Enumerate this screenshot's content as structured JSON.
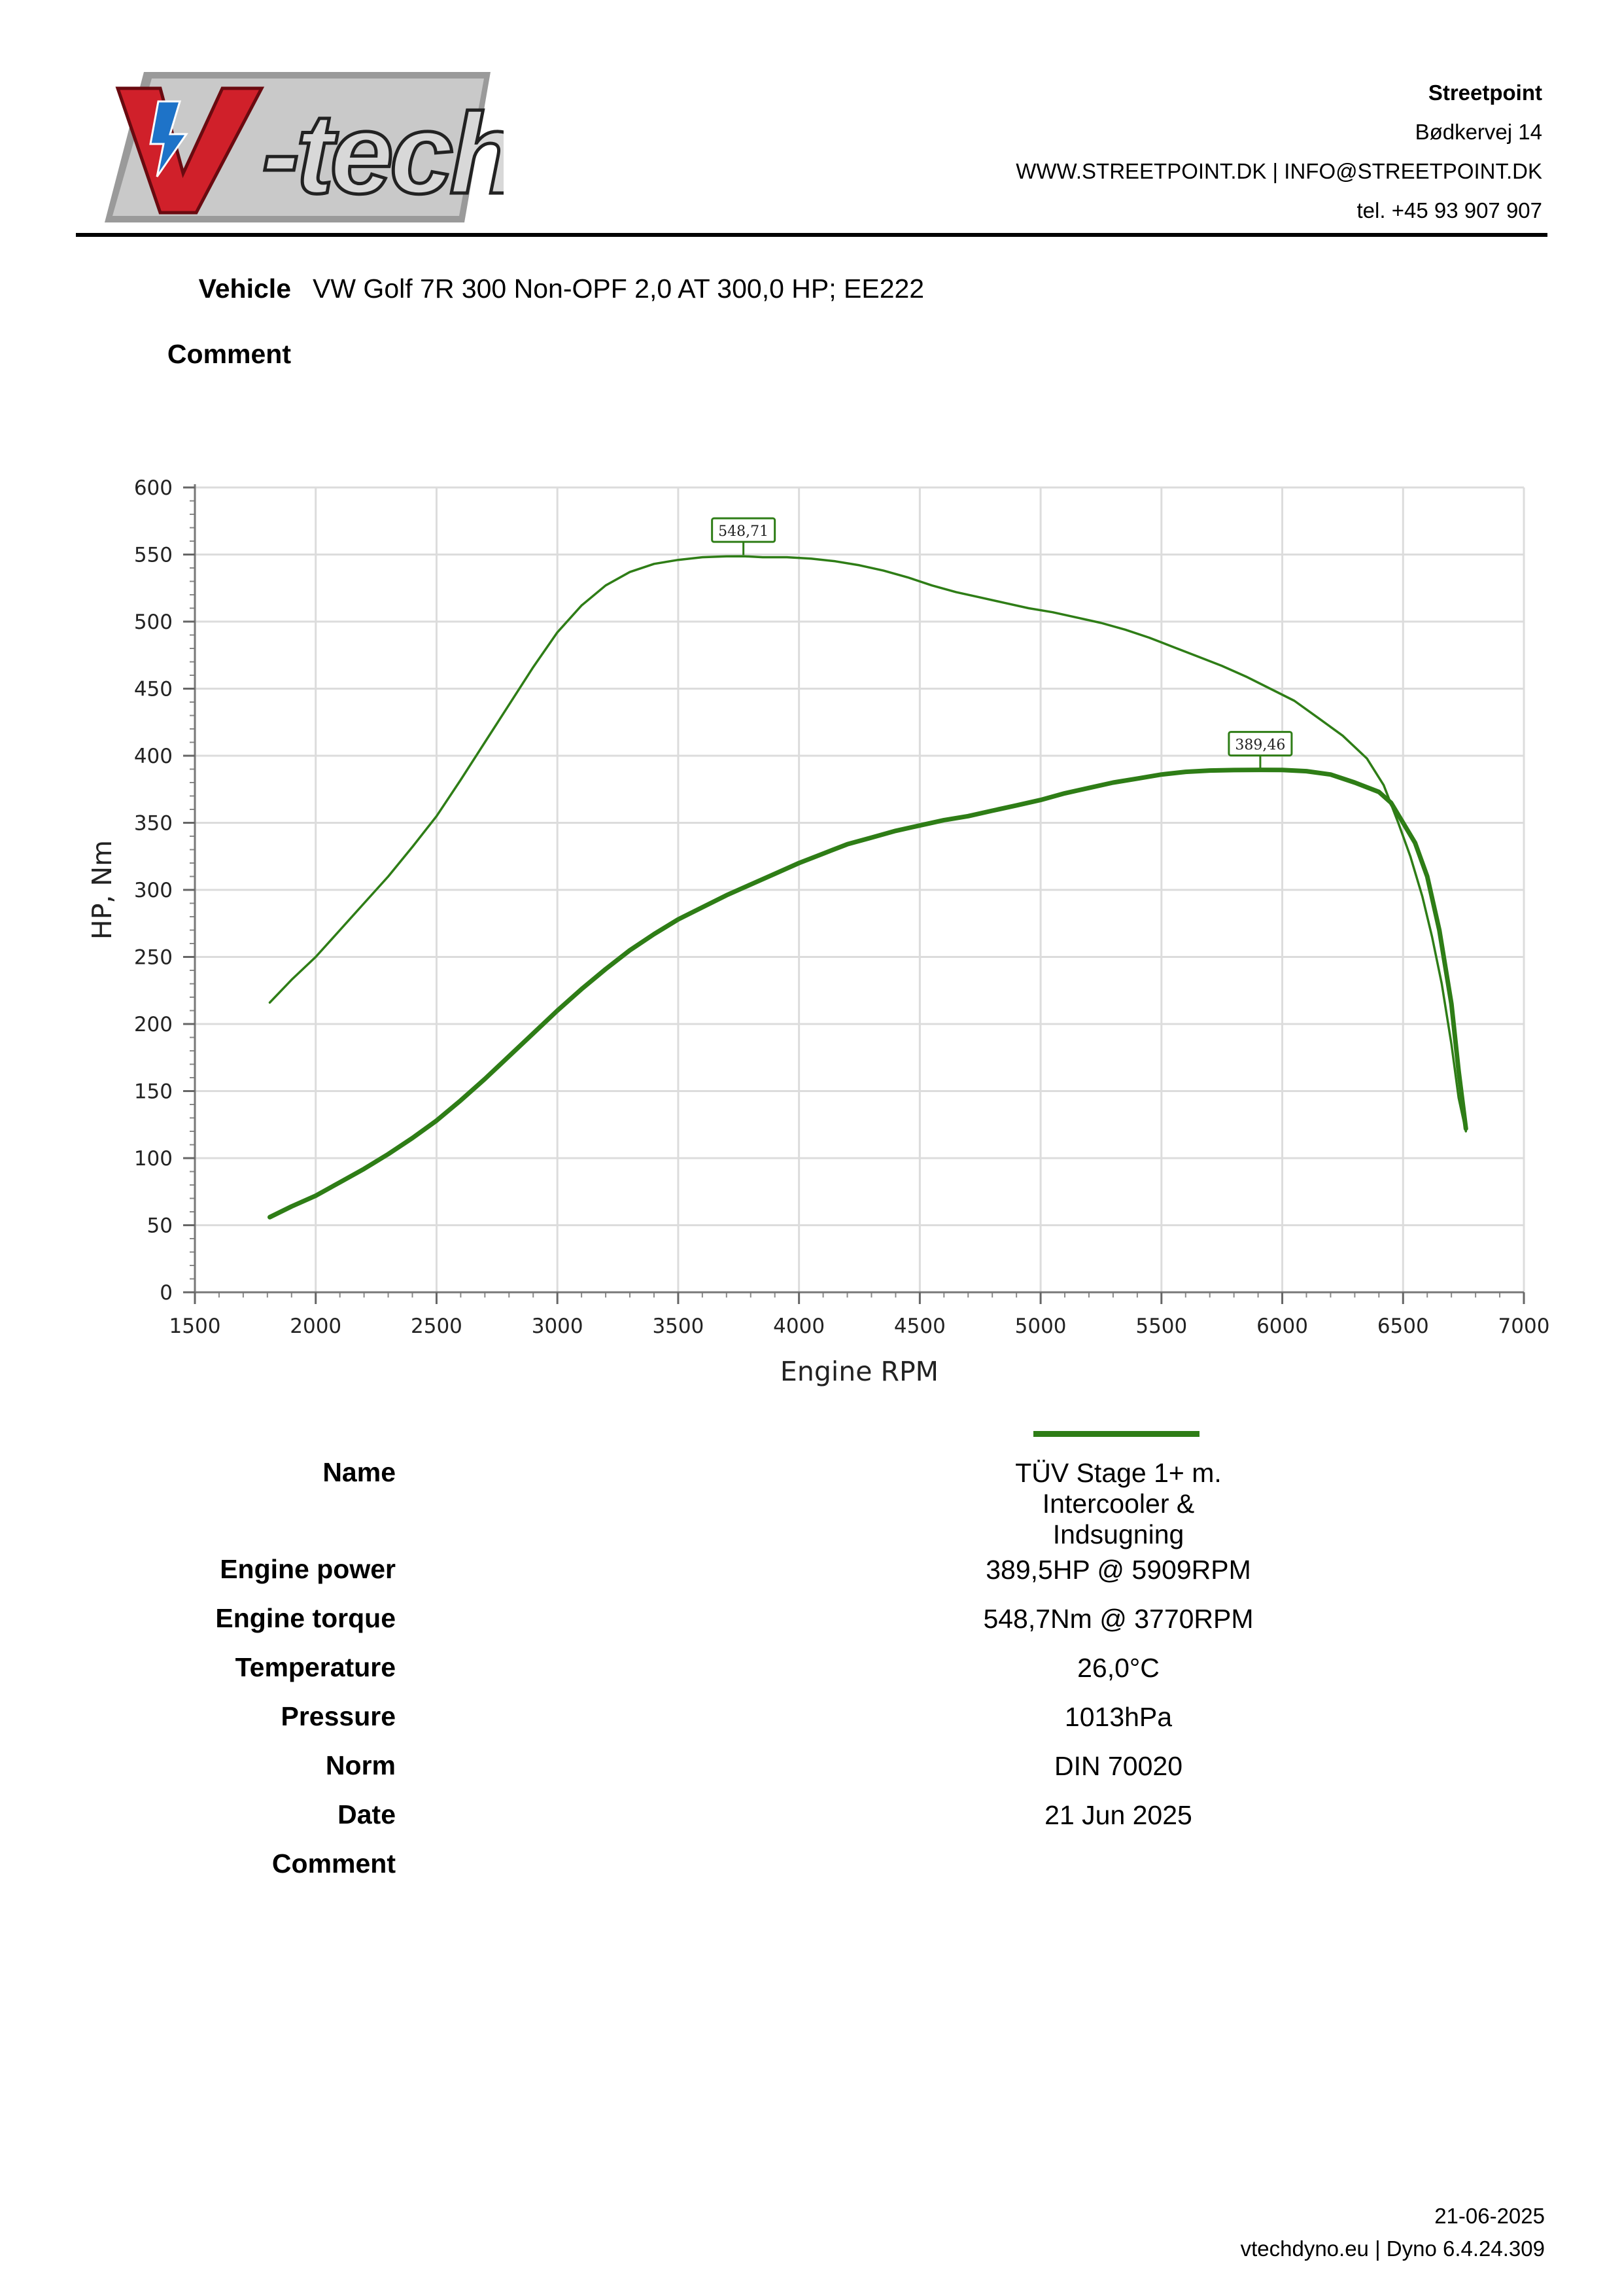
{
  "header": {
    "company_name": "Streetpoint",
    "address": "Bødkervej 14",
    "web_email": "WWW.STREETPOINT.DK | INFO@STREETPOINT.DK",
    "phone": "tel. +45 93 907 907",
    "logo_text": "V-tech"
  },
  "vehicle": {
    "label": "Vehicle",
    "value": "VW Golf 7R 300 Non-OPF 2,0 AT 300,0 HP; EE222"
  },
  "comment_label": "Comment",
  "chart_data": {
    "type": "line",
    "xlabel": "Engine RPM",
    "ylabel": "HP, Nm",
    "xlim": [
      1500,
      7000
    ],
    "ylim": [
      0,
      600
    ],
    "x_ticks": [
      "1500",
      "2000",
      "2500",
      "3000",
      "3500",
      "4000",
      "4500",
      "5000",
      "5500",
      "6000",
      "6500",
      "7000"
    ],
    "y_ticks": [
      "0",
      "50",
      "100",
      "150",
      "200",
      "250",
      "300",
      "350",
      "400",
      "450",
      "500",
      "550",
      "600"
    ],
    "grid": true,
    "color": "#2e7d16",
    "series": [
      {
        "kind": "torque",
        "x": [
          1810,
          1900,
          2000,
          2100,
          2200,
          2300,
          2400,
          2500,
          2600,
          2700,
          2800,
          2900,
          3000,
          3100,
          3200,
          3300,
          3400,
          3500,
          3600,
          3700,
          3770,
          3850,
          3950,
          4050,
          4150,
          4250,
          4350,
          4450,
          4550,
          4650,
          4750,
          4850,
          4950,
          5050,
          5150,
          5250,
          5350,
          5450,
          5550,
          5650,
          5750,
          5850,
          5950,
          6050,
          6150,
          6250,
          6350,
          6420,
          6480,
          6530,
          6580,
          6620,
          6660,
          6700,
          6730,
          6760
        ],
        "y": [
          216,
          233,
          250,
          270,
          290,
          310,
          332,
          355,
          382,
          410,
          438,
          466,
          492,
          512,
          527,
          537,
          543,
          546,
          548,
          548.7,
          548.71,
          548,
          548,
          547,
          545,
          542,
          538,
          533,
          527,
          522,
          518,
          514,
          510,
          507,
          503,
          499,
          494,
          488,
          481,
          474,
          467,
          459,
          450,
          441,
          428,
          415,
          398,
          378,
          350,
          325,
          295,
          265,
          230,
          185,
          145,
          120
        ]
      },
      {
        "kind": "power",
        "x": [
          1810,
          1900,
          2000,
          2100,
          2200,
          2300,
          2400,
          2500,
          2600,
          2700,
          2800,
          2900,
          3000,
          3100,
          3200,
          3300,
          3400,
          3500,
          3600,
          3700,
          3800,
          3900,
          4000,
          4100,
          4200,
          4300,
          4400,
          4500,
          4600,
          4700,
          4800,
          4900,
          5000,
          5100,
          5200,
          5300,
          5400,
          5500,
          5600,
          5700,
          5800,
          5909,
          6000,
          6100,
          6200,
          6300,
          6400,
          6450,
          6500,
          6550,
          6600,
          6650,
          6700,
          6730,
          6760
        ],
        "y": [
          56,
          64,
          72,
          82,
          92,
          103,
          115,
          128,
          143,
          159,
          176,
          193,
          210,
          226,
          241,
          255,
          267,
          278,
          287,
          296,
          304,
          312,
          320,
          327,
          334,
          339,
          344,
          348,
          352,
          355,
          359,
          363,
          367,
          372,
          376,
          380,
          383,
          386,
          388,
          389,
          389.3,
          389.46,
          389.4,
          388.5,
          386,
          380,
          373,
          365,
          350,
          335,
          310,
          270,
          215,
          165,
          122
        ]
      }
    ],
    "annotations": [
      {
        "label": "548,71",
        "x": 3770,
        "y": 548.71
      },
      {
        "label": "389,46",
        "x": 5909,
        "y": 389.46
      }
    ]
  },
  "results": {
    "rows": [
      {
        "label": "Name",
        "value_lines": [
          "TÜV Stage 1+ m.",
          "Intercooler &",
          "Indsugning"
        ]
      },
      {
        "label": "Engine power",
        "value_lines": [
          "389,5HP @ 5909RPM"
        ]
      },
      {
        "label": "Engine torque",
        "value_lines": [
          "548,7Nm @ 3770RPM"
        ]
      },
      {
        "label": "Temperature",
        "value_lines": [
          "26,0°C"
        ]
      },
      {
        "label": "Pressure",
        "value_lines": [
          "1013hPa"
        ]
      },
      {
        "label": "Norm",
        "value_lines": [
          "DIN 70020"
        ]
      },
      {
        "label": "Date",
        "value_lines": [
          "21 Jun 2025"
        ]
      },
      {
        "label": "Comment",
        "value_lines": []
      }
    ]
  },
  "footer": {
    "date": "21-06-2025",
    "software": "vtechdyno.eu | Dyno 6.4.24.309"
  }
}
